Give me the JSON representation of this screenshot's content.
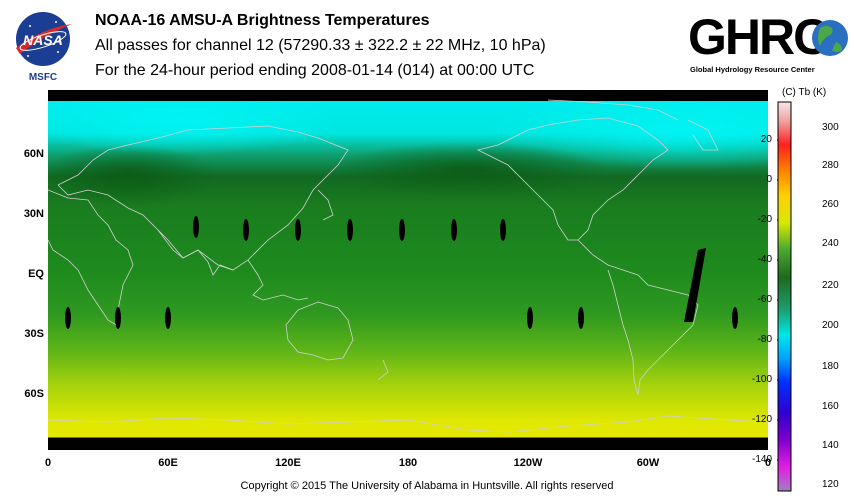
{
  "header": {
    "title": "NOAA-16 AMSU-A Brightness Temperatures",
    "subtitle": "All passes for channel 12 (57290.33 ± 322.2 ± 22 MHz, 10 hPa)",
    "period": "For the 24-hour period ending 2008-01-14 (014) at 00:00 UTC"
  },
  "logos": {
    "nasa": {
      "text": "NASA",
      "caption": "MSFC",
      "icon": "nasa-meatball-icon"
    },
    "ghrc": {
      "text": "GHRC",
      "caption": "Global Hydrology Resource Center",
      "icon": "globe-icon"
    }
  },
  "map": {
    "lat_labels": [
      "60N",
      "30N",
      "EQ",
      "30S",
      "60S"
    ],
    "lon_labels": [
      "0",
      "60E",
      "120E",
      "180",
      "120W",
      "60W",
      "0"
    ]
  },
  "colorbar": {
    "header": "(C)  Tb  (K)",
    "celsius_labels": [
      "20",
      "0",
      "-20",
      "-40",
      "-60",
      "-80",
      "-100",
      "-120",
      "-140"
    ],
    "kelvin_labels": [
      "300",
      "280",
      "260",
      "240",
      "220",
      "200",
      "180",
      "160",
      "140",
      "120"
    ]
  },
  "footer": {
    "copyright": "Copyright © 2015 The University of Alabama in Huntsville.  All rights reserved"
  },
  "colors": {
    "cyan_high": "#00f0f0",
    "green_band": "#1a8a1a",
    "yellow_south": "#e8e800",
    "coastline": "#c8c8c8"
  }
}
